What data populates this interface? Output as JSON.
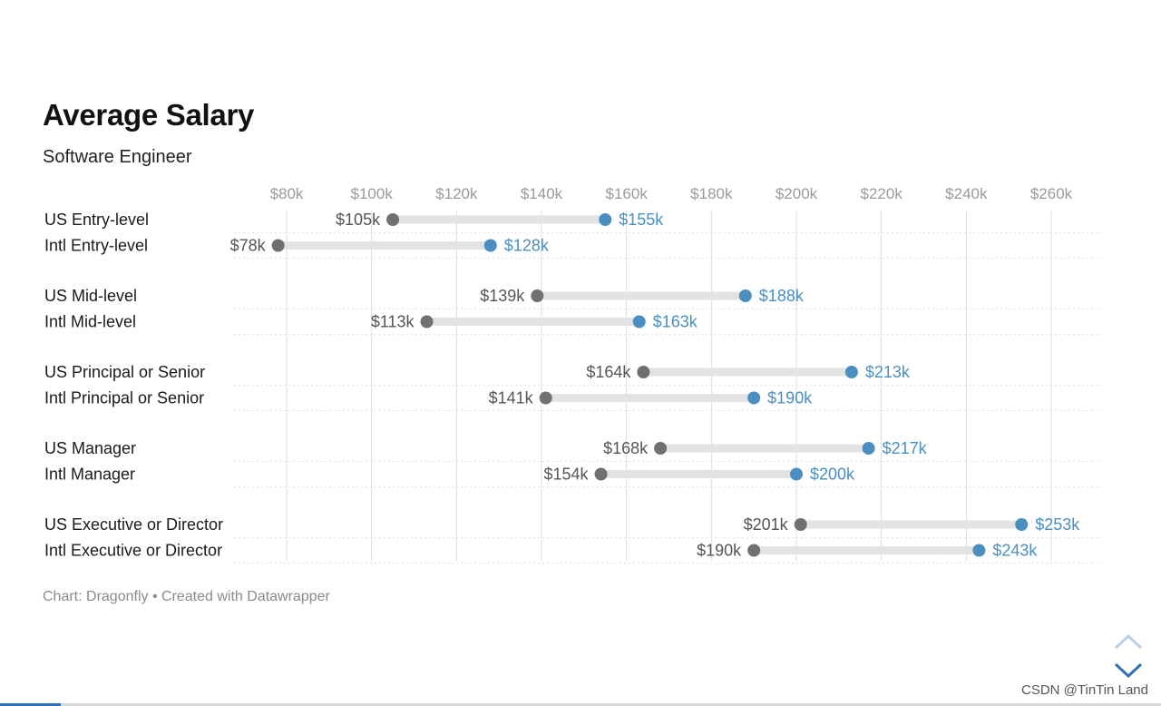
{
  "title": "Average Salary",
  "subtitle": "Software Engineer",
  "footer": "Chart: Dragonfly • Created with Datawrapper",
  "watermark": "CSDN @TinTin Land",
  "navigation": {
    "up_icon": "chevron-up-icon",
    "down_icon": "chevron-down-icon"
  },
  "page_progress": 0.052,
  "colors": {
    "low_dot": "#707070",
    "high_dot": "#4a8fc0",
    "range_bar": "#e3e3e3",
    "grid": "#dddddd",
    "tick_label": "#9a9a9a",
    "high_label": "#4a8fc0",
    "low_label": "#555555"
  },
  "chart_data": {
    "type": "range-dot",
    "title": "Average Salary",
    "subtitle": "Software Engineer",
    "xlim": [
      80,
      260
    ],
    "x_ticks": [
      80,
      100,
      120,
      140,
      160,
      180,
      200,
      220,
      240,
      260
    ],
    "x_tick_labels": [
      "$80k",
      "$100k",
      "$120k",
      "$140k",
      "$160k",
      "$180k",
      "$200k",
      "$220k",
      "$240k",
      "$260k"
    ],
    "grid": "vertical",
    "groups": [
      {
        "rows": [
          {
            "category": "US Entry-level",
            "low": 105,
            "high": 155,
            "low_label": "$105k",
            "high_label": "$155k"
          },
          {
            "category": "Intl Entry-level",
            "low": 78,
            "high": 128,
            "low_label": "$78k",
            "high_label": "$128k"
          }
        ]
      },
      {
        "rows": [
          {
            "category": "US Mid-level",
            "low": 139,
            "high": 188,
            "low_label": "$139k",
            "high_label": "$188k"
          },
          {
            "category": "Intl Mid-level",
            "low": 113,
            "high": 163,
            "low_label": "$113k",
            "high_label": "$163k"
          }
        ]
      },
      {
        "rows": [
          {
            "category": "US Principal or Senior",
            "low": 164,
            "high": 213,
            "low_label": "$164k",
            "high_label": "$213k"
          },
          {
            "category": "Intl Principal or Senior",
            "low": 141,
            "high": 190,
            "low_label": "$141k",
            "high_label": "$190k"
          }
        ]
      },
      {
        "rows": [
          {
            "category": "US Manager",
            "low": 168,
            "high": 217,
            "low_label": "$168k",
            "high_label": "$217k"
          },
          {
            "category": "Intl Manager",
            "low": 154,
            "high": 200,
            "low_label": "$154k",
            "high_label": "$200k"
          }
        ]
      },
      {
        "rows": [
          {
            "category": "US Executive or Director",
            "low": 201,
            "high": 253,
            "low_label": "$201k",
            "high_label": "$253k"
          },
          {
            "category": "Intl Executive or Director",
            "low": 190,
            "high": 243,
            "low_label": "$190k",
            "high_label": "$243k"
          }
        ]
      }
    ]
  }
}
